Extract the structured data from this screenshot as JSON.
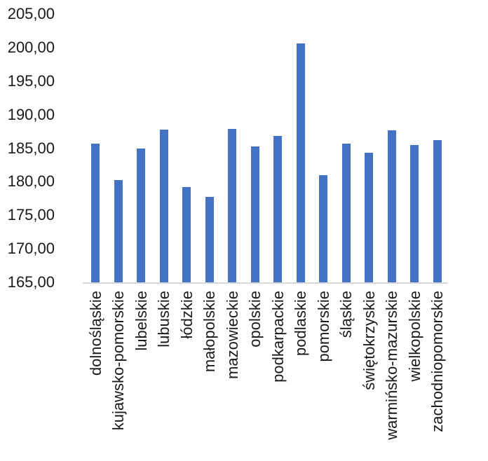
{
  "chart_data": {
    "type": "bar",
    "title": "",
    "legend": "none",
    "grid": "off",
    "orientation": "vertical",
    "categories": [
      "dolnośląskie",
      "kujawsko-pomorskie",
      "lubelskie",
      "lubuskie",
      "łódzkie",
      "małopolskie",
      "mazowieckie",
      "opolskie",
      "podkarpackie",
      "podlaskie",
      "pomorskie",
      "śląskie",
      "świętokrzyskie",
      "warmińsko-mazurskie",
      "wielkopolskie",
      "zachodniopomorskie"
    ],
    "values": [
      185.7,
      180.3,
      185.0,
      187.8,
      179.2,
      177.7,
      187.9,
      185.3,
      186.8,
      200.6,
      181.0,
      185.7,
      184.3,
      187.7,
      185.5,
      186.2
    ],
    "ylim": [
      165,
      205
    ],
    "y_ticks": [
      {
        "value": 205,
        "label": "205,00"
      },
      {
        "value": 200,
        "label": "200,00"
      },
      {
        "value": 195,
        "label": "195,00"
      },
      {
        "value": 190,
        "label": "190,00"
      },
      {
        "value": 185,
        "label": "185,00"
      },
      {
        "value": 180,
        "label": "180,00"
      },
      {
        "value": 175,
        "label": "175,00"
      },
      {
        "value": 170,
        "label": "170,00"
      },
      {
        "value": 165,
        "label": "165,00"
      }
    ],
    "xlabel": "",
    "ylabel": "",
    "colors": {
      "bar_fill": "#4472c4",
      "axis_line": "#d6d6d6",
      "text": "#1a1a1a"
    }
  }
}
